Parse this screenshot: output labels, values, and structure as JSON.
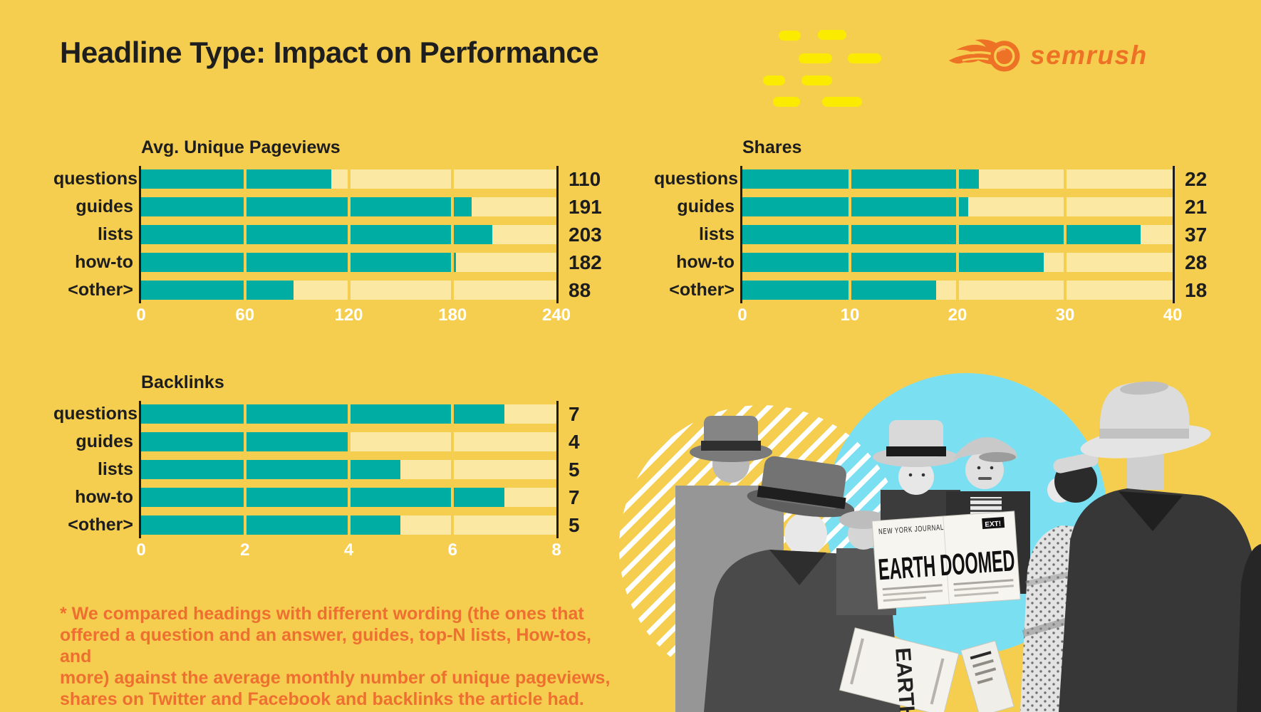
{
  "page": {
    "title": "Headline Type: Impact on Performance",
    "background": "#F5CE4F"
  },
  "logo": {
    "brand": "semrush",
    "color": "#ED7225"
  },
  "colors": {
    "bar_fill": "#00ADA2",
    "bar_track": "#FAE8A3",
    "accent_yellow": "#FAEB00",
    "text_dark": "#1d1d1d",
    "tick_white": "#FFFFFF",
    "footnote_orange": "#EE7030",
    "photo_blue": "#7BDFF2"
  },
  "chart_data": [
    {
      "type": "bar",
      "orientation": "horizontal",
      "title": "Avg. Unique Pageviews",
      "categories": [
        "questions",
        "guides",
        "lists",
        "how-to",
        "<other>"
      ],
      "values": [
        110,
        191,
        203,
        182,
        88
      ],
      "xlim": [
        0,
        240
      ],
      "ticks": [
        0,
        60,
        120,
        180,
        240
      ],
      "grid": "segment-gaps-at-major-ticks",
      "value_labels": "right"
    },
    {
      "type": "bar",
      "orientation": "horizontal",
      "title": "Shares",
      "categories": [
        "questions",
        "guides",
        "lists",
        "how-to",
        "<other>"
      ],
      "values": [
        22,
        21,
        37,
        28,
        18
      ],
      "xlim": [
        0,
        40
      ],
      "ticks": [
        0,
        10,
        20,
        30,
        40
      ],
      "grid": "segment-gaps-at-major-ticks",
      "value_labels": "right"
    },
    {
      "type": "bar",
      "orientation": "horizontal",
      "title": "Backlinks",
      "categories": [
        "questions",
        "guides",
        "lists",
        "how-to",
        "<other>"
      ],
      "values": [
        7,
        4,
        5,
        7,
        5
      ],
      "xlim": [
        0,
        8
      ],
      "ticks": [
        0,
        2,
        4,
        6,
        8
      ],
      "grid": "segment-gaps-at-major-ticks",
      "value_labels": "right"
    }
  ],
  "footnote": {
    "text": "* We compared headings with different wording (the ones that\noffered a question and an answer, guides, top-N lists, How-tos, and\nmore) against the average monthly number of unique pageviews,\nshares on Twitter and Facebook and backlinks the article had."
  },
  "photo": {
    "masthead": "NEW YORK JOURNAL",
    "badge": "EXT!",
    "headline": "EARTH DOOMED",
    "side_headline": "EARTH"
  }
}
